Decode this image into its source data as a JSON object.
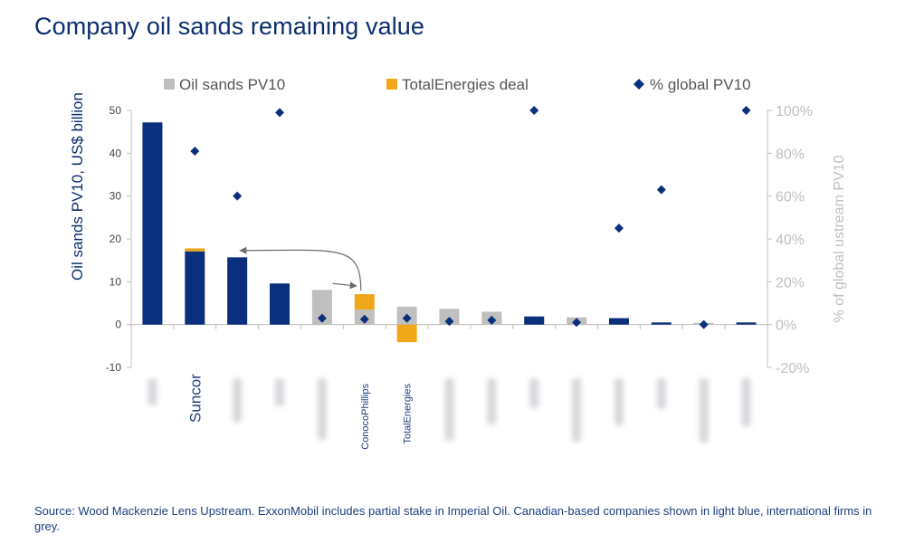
{
  "title": "Company oil sands remaining value",
  "source": "Source: Wood Mackenzie Lens Upstream. ExxonMobil includes partial stake in Imperial Oil. Canadian-based companies shown in light blue, international firms in grey.",
  "colors": {
    "navy": "#0a2f7c",
    "grey": "#bfbfbf",
    "gold": "#f0a81a",
    "diamond": "#0a2f7c",
    "arrow": "#6b6b6b"
  },
  "chart_data": {
    "type": "bar",
    "title": "Company oil sands remaining value",
    "ylabel": "Oil sands PV10, US$ billion",
    "y2label": "% of global ustream PV10",
    "ylim": [
      -10,
      50
    ],
    "y2lim": [
      -20,
      100
    ],
    "yticks": [
      -10,
      0,
      10,
      20,
      30,
      40,
      50
    ],
    "y2ticks": [
      "-20%",
      "0%",
      "20%",
      "40%",
      "60%",
      "80%",
      "100%"
    ],
    "legend": [
      "Oil sands PV10",
      "TotalEnergies deal",
      "% global PV10"
    ],
    "legend_position": "top",
    "categories": [
      "",
      "Suncor",
      "",
      "",
      "",
      "ConocoPhillips",
      "TotalEnergies",
      "",
      "",
      "",
      "",
      "",
      "",
      "",
      ""
    ],
    "series": [
      {
        "name": "Oil sands PV10",
        "values": [
          47.2,
          17.1,
          15.7,
          9.6,
          8.1,
          3.5,
          4.2,
          3.7,
          3.0,
          1.9,
          1.7,
          1.5,
          0.5,
          0.4,
          0.5
        ],
        "canadian": [
          true,
          true,
          true,
          true,
          false,
          false,
          false,
          false,
          false,
          true,
          false,
          true,
          true,
          false,
          true
        ]
      },
      {
        "name": "TotalEnergies deal",
        "values": [
          0,
          0.7,
          0,
          0,
          0,
          3.6,
          -4.1,
          0,
          0,
          0,
          0,
          0,
          0,
          0,
          0
        ]
      },
      {
        "name": "% global PV10",
        "axis": "right",
        "values": [
          null,
          81,
          60,
          99,
          3,
          2.5,
          3,
          1.5,
          2,
          100,
          1,
          45,
          63,
          0,
          100
        ]
      }
    ],
    "annotations": [
      {
        "type": "arrow",
        "from_category": "ConocoPhillips",
        "to_category": "Suncor"
      },
      {
        "type": "arrow",
        "from_category": "ConocoPhillips",
        "to_category": "ConocoPhillips"
      }
    ]
  }
}
